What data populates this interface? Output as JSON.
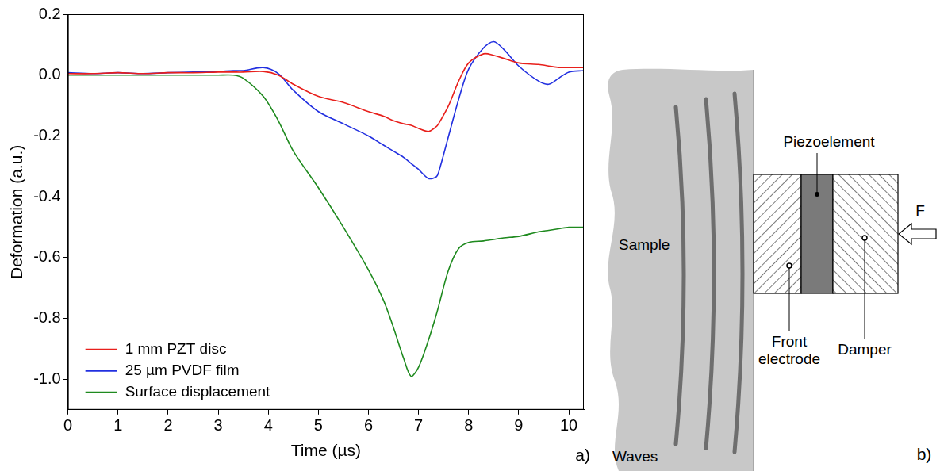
{
  "chart_data": {
    "type": "line",
    "x_label": "Time (µs)",
    "y_label": "Deformation (a.u.)",
    "annotations": [
      "a)"
    ],
    "x": [
      0,
      0.5,
      1,
      1.5,
      2,
      2.5,
      3,
      3.3,
      3.5,
      3.9,
      4.2,
      4.5,
      5,
      5.5,
      6,
      6.3,
      6.5,
      6.7,
      6.85,
      7,
      7.2,
      7.35,
      7.4,
      7.6,
      7.8,
      8,
      8.3,
      8.5,
      8.7,
      9,
      9.4,
      9.6,
      9.8,
      10,
      10.3
    ],
    "series": [
      {
        "name": "1 mm PZT disc",
        "color": "#e8201c",
        "values": [
          0.005,
          0.005,
          0.008,
          0.005,
          0.008,
          0.008,
          0.01,
          0.01,
          0.01,
          0.012,
          0.0,
          -0.03,
          -0.07,
          -0.09,
          -0.12,
          -0.135,
          -0.15,
          -0.16,
          -0.165,
          -0.175,
          -0.185,
          -0.17,
          -0.16,
          -0.1,
          -0.02,
          0.04,
          0.07,
          0.065,
          0.055,
          0.04,
          0.035,
          0.03,
          0.025,
          0.025,
          0.025
        ]
      },
      {
        "name": "25 µm PVDF film",
        "color": "#2230e0",
        "values": [
          0.008,
          0.005,
          0.008,
          0.005,
          0.008,
          0.01,
          0.012,
          0.015,
          0.015,
          0.025,
          0.005,
          -0.05,
          -0.12,
          -0.16,
          -0.2,
          -0.23,
          -0.25,
          -0.27,
          -0.29,
          -0.31,
          -0.34,
          -0.335,
          -0.32,
          -0.2,
          -0.08,
          0.02,
          0.09,
          0.11,
          0.085,
          0.03,
          -0.02,
          -0.03,
          -0.01,
          0.01,
          0.015
        ]
      },
      {
        "name": "Surface displacement",
        "color": "#1f8a1f",
        "values": [
          0,
          0,
          0,
          0,
          0,
          0,
          0,
          0,
          -0.01,
          -0.07,
          -0.15,
          -0.25,
          -0.37,
          -0.5,
          -0.64,
          -0.74,
          -0.83,
          -0.93,
          -0.99,
          -0.96,
          -0.87,
          -0.79,
          -0.76,
          -0.64,
          -0.57,
          -0.55,
          -0.545,
          -0.54,
          -0.535,
          -0.53,
          -0.515,
          -0.51,
          -0.505,
          -0.5,
          -0.5
        ]
      }
    ],
    "xlim": [
      0,
      10.3
    ],
    "xticks": [
      0,
      1,
      2,
      3,
      4,
      5,
      6,
      7,
      8,
      9,
      10
    ],
    "ylim": [
      -1.1,
      0.2
    ],
    "yticks": [
      {
        "value": -1,
        "label": "-1.0"
      },
      -0.8,
      -0.6,
      -0.4,
      -0.2,
      {
        "value": 0,
        "label": "0.0"
      },
      0.2
    ],
    "grid": false,
    "legend": "bottom-left"
  },
  "diagram": {
    "panel_label": "b)",
    "labels": {
      "sample": "Sample",
      "waves": "Waves",
      "piezoelement": "Piezoelement",
      "front_electrode": "Front electrode",
      "damper": "Damper",
      "force": "F"
    }
  }
}
